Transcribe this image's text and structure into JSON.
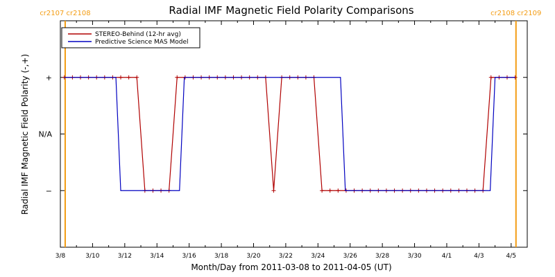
{
  "chart_data": {
    "type": "line",
    "title": "Radial IMF Magnetic Field Polarity Comparisons",
    "xlabel": "Month/Day from 2011-03-08 to 2011-04-05 (UT)",
    "ylabel": "Radial IMF Magnetic Field Polarity (-,+)",
    "xlim": [
      0,
      29
    ],
    "ylim": [
      -2,
      2
    ],
    "x_ticks": [
      {
        "day": 0,
        "label": "3/8"
      },
      {
        "day": 2,
        "label": "3/10"
      },
      {
        "day": 4,
        "label": "3/12"
      },
      {
        "day": 6,
        "label": "3/14"
      },
      {
        "day": 8,
        "label": "3/16"
      },
      {
        "day": 10,
        "label": "3/18"
      },
      {
        "day": 12,
        "label": "3/20"
      },
      {
        "day": 14,
        "label": "3/22"
      },
      {
        "day": 16,
        "label": "3/24"
      },
      {
        "day": 18,
        "label": "3/26"
      },
      {
        "day": 20,
        "label": "3/28"
      },
      {
        "day": 22,
        "label": "3/30"
      },
      {
        "day": 24,
        "label": "4/1"
      },
      {
        "day": 26,
        "label": "4/3"
      },
      {
        "day": 28,
        "label": "4/5"
      }
    ],
    "y_ticks": [
      {
        "value": 1,
        "label": "+"
      },
      {
        "value": 0,
        "label": "N/A"
      },
      {
        "value": -1,
        "label": "−"
      }
    ],
    "carrington_markers": [
      {
        "day": 0.3,
        "label": "cr2107 cr2108"
      },
      {
        "day": 28.3,
        "label": "cr2108 cr2109"
      }
    ],
    "series": [
      {
        "name": "STEREO-Behind (12-hr avg)",
        "color": "#b00000",
        "marker": "plus",
        "x": [
          0.25,
          0.75,
          1.25,
          1.75,
          2.25,
          2.75,
          3.25,
          3.75,
          4.25,
          4.75,
          5.25,
          5.75,
          6.25,
          6.75,
          7.25,
          7.75,
          8.25,
          8.75,
          9.25,
          9.75,
          10.25,
          10.75,
          11.25,
          11.75,
          12.25,
          12.75,
          13.25,
          13.75,
          14.25,
          14.75,
          15.25,
          15.75,
          16.25,
          16.75,
          17.25,
          17.75,
          18.25,
          18.75,
          19.25,
          19.75,
          20.25,
          20.75,
          21.25,
          21.75,
          22.25,
          22.75,
          23.25,
          23.75,
          24.25,
          24.75,
          25.25,
          25.75,
          26.25,
          26.75,
          27.25,
          27.75,
          28.25
        ],
        "y": [
          1,
          1,
          1,
          1,
          1,
          1,
          1,
          1,
          1,
          1,
          -1,
          -1,
          -1,
          -1,
          1,
          1,
          1,
          1,
          1,
          1,
          1,
          1,
          1,
          1,
          1,
          1,
          -1,
          1,
          1,
          1,
          1,
          1,
          -1,
          -1,
          -1,
          -1,
          -1,
          -1,
          -1,
          -1,
          -1,
          -1,
          -1,
          -1,
          -1,
          -1,
          -1,
          -1,
          -1,
          -1,
          -1,
          -1,
          -1,
          1,
          1,
          1,
          1
        ]
      },
      {
        "name": "Predictive Science MAS Model",
        "color": "#0000c0",
        "marker": "none",
        "x": [
          0.25,
          3.45,
          3.75,
          7.4,
          7.7,
          17.4,
          17.7,
          26.7,
          27.0,
          28.25
        ],
        "y": [
          1,
          1,
          -1,
          -1,
          1,
          1,
          -1,
          -1,
          1,
          1
        ]
      }
    ],
    "legend": "top-left",
    "grid": false
  }
}
